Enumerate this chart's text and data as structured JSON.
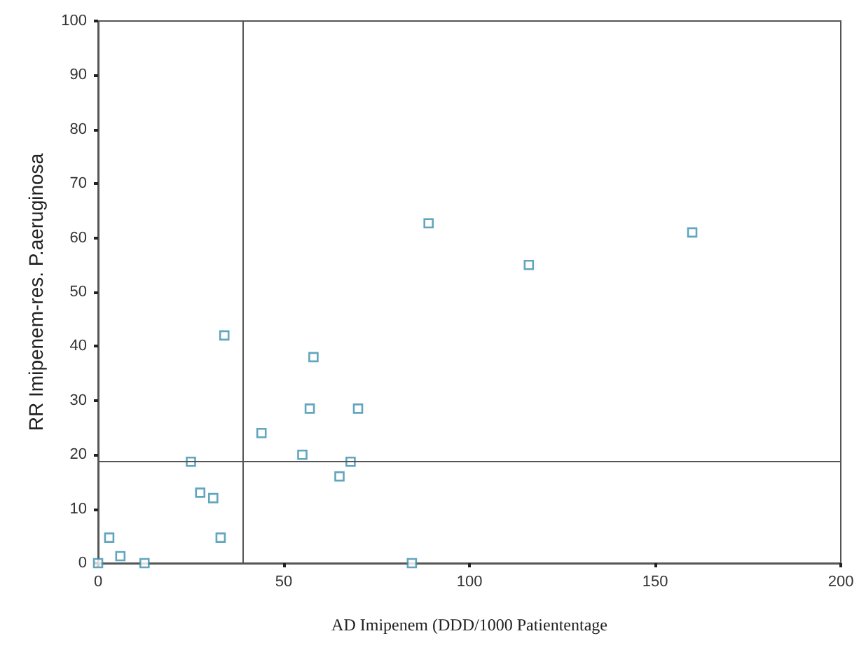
{
  "chart_data": {
    "type": "scatter",
    "xlabel": "AD Imipenem (DDD/1000 Patiententage",
    "ylabel": "RR Imipenem-res. P.aeruginosa",
    "x": [
      0,
      3,
      6,
      12.5,
      25,
      27.5,
      31,
      33,
      34,
      44,
      55,
      57,
      58,
      65,
      68,
      70,
      84.5,
      89,
      116,
      160
    ],
    "series": [
      {
        "color": "#3a8fae",
        "values": [
          0,
          4.7,
          1.3,
          0,
          18.7,
          13,
          12,
          4.7,
          42,
          24,
          20,
          28.5,
          38,
          16,
          18.7,
          28.5,
          0,
          62.7,
          55,
          61
        ]
      }
    ],
    "xlim": [
      0,
      200
    ],
    "xticks": [
      0,
      50,
      100,
      150,
      200
    ],
    "ylim": [
      0,
      100
    ],
    "yticks": [
      0,
      10,
      20,
      30,
      40,
      50,
      60,
      70,
      80,
      90,
      100
    ],
    "ref_lines": [
      {
        "axis": "x",
        "value": 39
      },
      {
        "axis": "y",
        "value": 18.7
      }
    ],
    "marker": "square",
    "grid": false
  }
}
